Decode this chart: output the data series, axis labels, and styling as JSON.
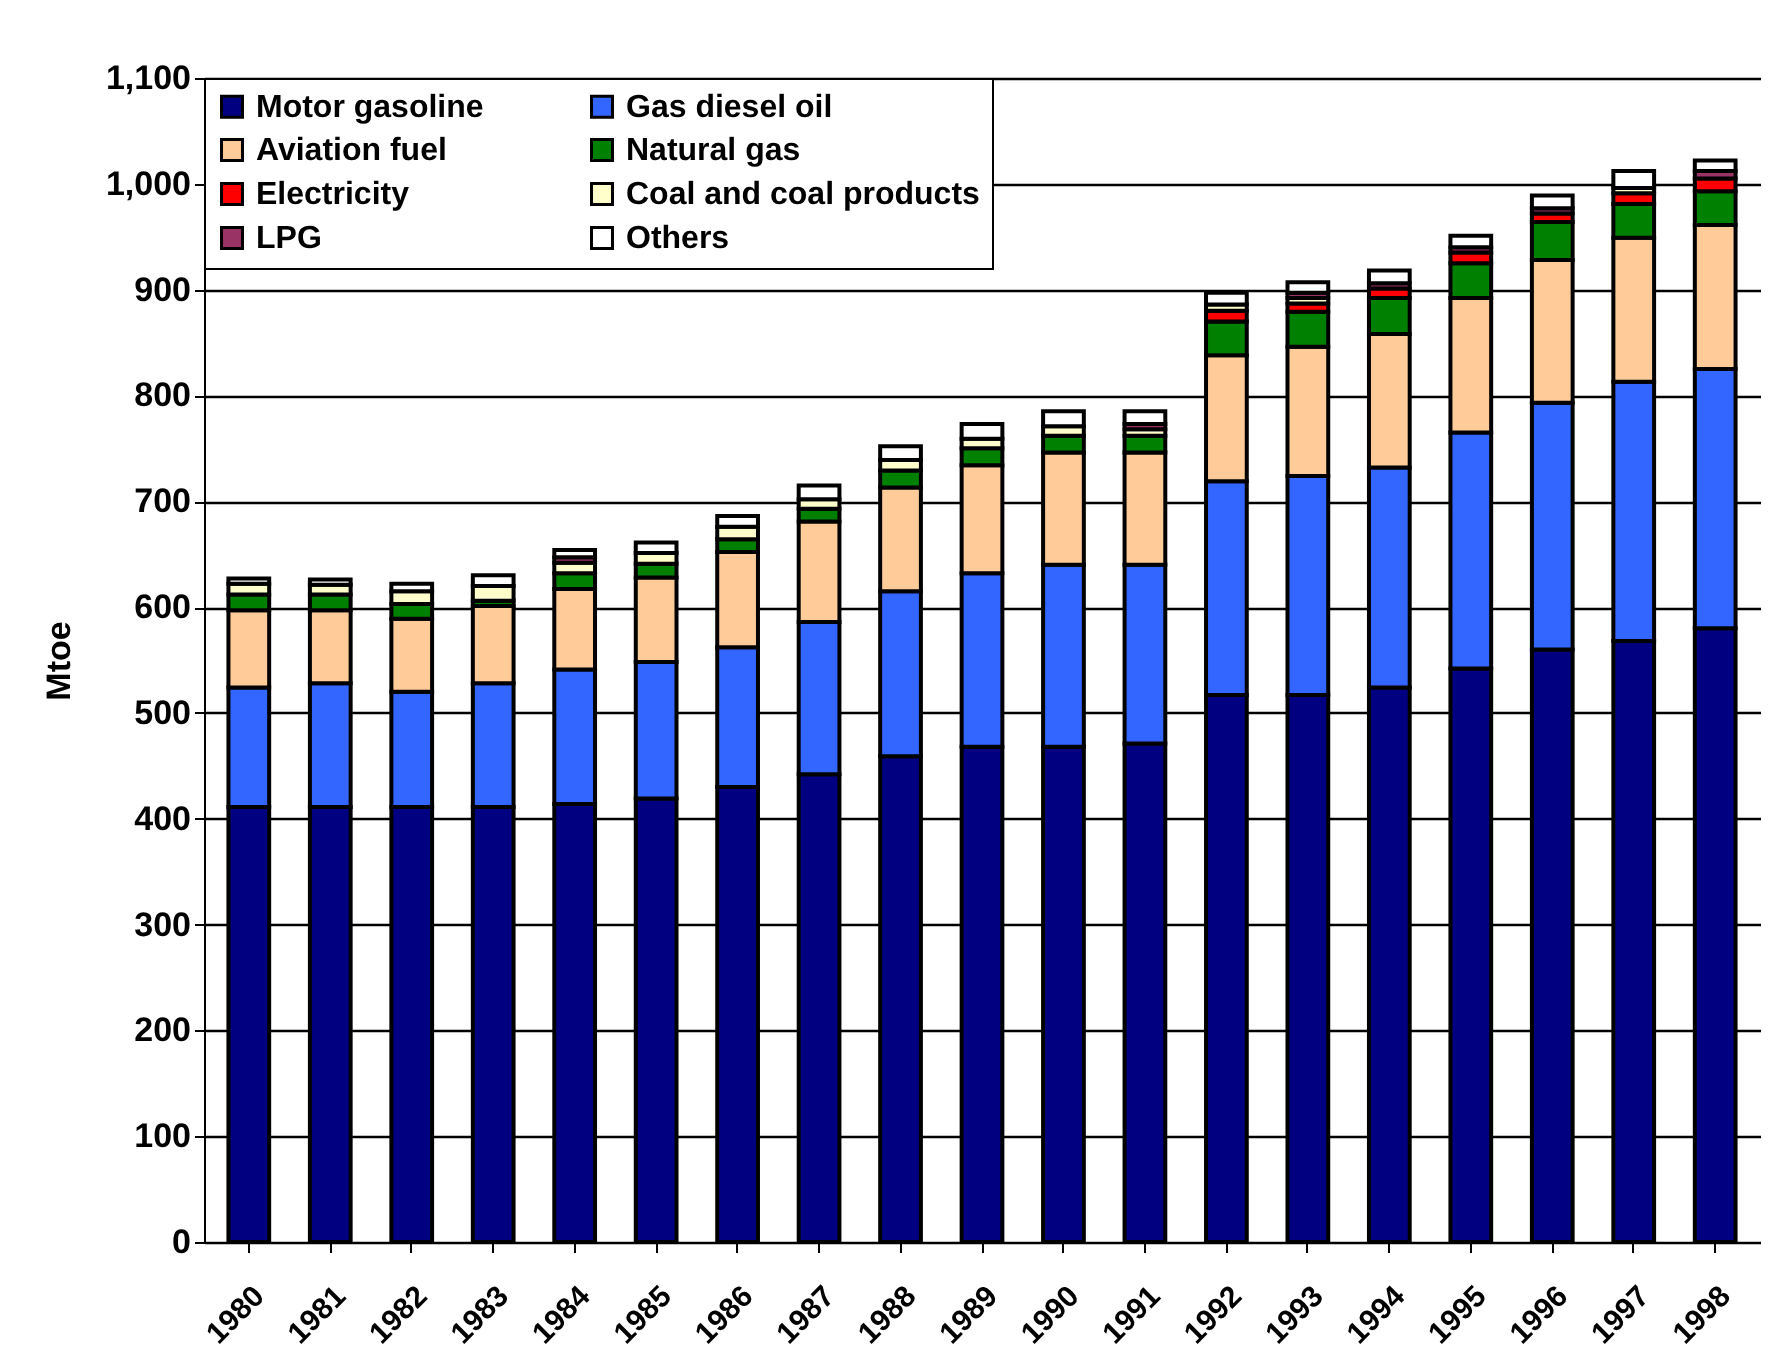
{
  "chart_data": {
    "type": "bar",
    "stacked": true,
    "ylabel": "Mtoe",
    "categories": [
      "1980",
      "1981",
      "1982",
      "1983",
      "1984",
      "1985",
      "1986",
      "1987",
      "1988",
      "1989",
      "1990",
      "1991",
      "1992",
      "1993",
      "1994",
      "1995",
      "1996",
      "1997",
      "1998"
    ],
    "series": [
      {
        "name": "Motor gasoline",
        "color": "#000080",
        "values": [
          411,
          411,
          411,
          411,
          414,
          419,
          430,
          442,
          459,
          468,
          468,
          471,
          517,
          517,
          524,
          542,
          560,
          568,
          580
        ]
      },
      {
        "name": "Gas diesel oil",
        "color": "#3366ff",
        "values": [
          113,
          117,
          109,
          117,
          127,
          129,
          132,
          144,
          156,
          164,
          172,
          169,
          202,
          207,
          208,
          223,
          233,
          245,
          245
        ]
      },
      {
        "name": "Aviation fuel",
        "color": "#ffcc99",
        "values": [
          73,
          69,
          69,
          73,
          76,
          80,
          90,
          95,
          98,
          102,
          106,
          106,
          119,
          122,
          126,
          127,
          135,
          136,
          136
        ]
      },
      {
        "name": "Natural gas",
        "color": "#008000",
        "values": [
          15,
          15,
          14,
          5,
          15,
          13,
          12,
          12,
          16,
          16,
          16,
          16,
          32,
          33,
          34,
          33,
          36,
          32,
          32
        ]
      },
      {
        "name": "Electricity",
        "color": "#ff0000",
        "values": [
          null,
          null,
          null,
          null,
          null,
          null,
          null,
          null,
          null,
          null,
          null,
          null,
          10,
          8,
          9,
          10,
          8,
          10,
          12
        ]
      },
      {
        "name": "Coal and coal products",
        "color": "#ffffcc",
        "values": [
          10,
          9,
          12,
          14,
          10,
          10,
          12,
          9,
          10,
          9,
          9,
          6,
          6,
          5,
          null,
          null,
          null,
          5,
          null
        ]
      },
      {
        "name": "LPG",
        "color": "#993366",
        "values": [
          null,
          null,
          null,
          null,
          5,
          null,
          null,
          null,
          null,
          null,
          null,
          5,
          null,
          5,
          5,
          5,
          5,
          null,
          7
        ]
      },
      {
        "name": "Others",
        "color": "#ffffff",
        "values": [
          5,
          5,
          7,
          10,
          7,
          10,
          10,
          13,
          13,
          14,
          14,
          12,
          11,
          10,
          12,
          11,
          12,
          16,
          10
        ]
      }
    ],
    "ylim": [
      0,
      1100
    ],
    "yticks": [
      0,
      100,
      200,
      300,
      400,
      500,
      600,
      700,
      800,
      900,
      {
        "value": 1000,
        "label": "1,000"
      },
      {
        "value": 1100,
        "label": "1,100"
      }
    ],
    "grid": "y",
    "legend": "top left"
  }
}
